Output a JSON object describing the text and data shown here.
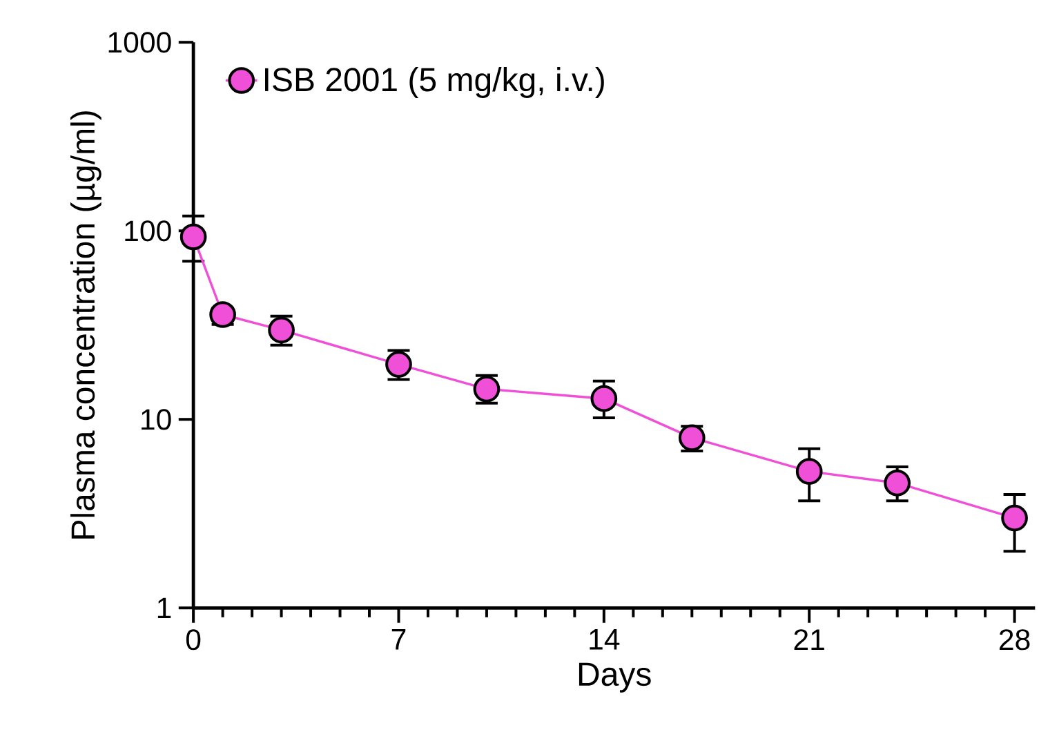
{
  "chart_data": {
    "type": "line",
    "xlabel": "Days",
    "ylabel": "Plasma concentration (µg/ml)",
    "x": [
      0,
      1,
      3,
      7,
      10,
      14,
      17,
      21,
      24,
      28
    ],
    "series": [
      {
        "name": "ISB 2001 (5 mg/kg, i.v.)",
        "color": "#f050d8",
        "values": [
          93,
          36,
          29.8,
          19.6,
          14.5,
          12.9,
          8.0,
          5.3,
          4.6,
          3.0
        ],
        "errors": [
          [
            69,
            120
          ],
          [
            31.9,
            39
          ],
          [
            24.8,
            35.3
          ],
          [
            16.3,
            23.2
          ],
          [
            12.2,
            17.1
          ],
          [
            10.2,
            16
          ],
          [
            6.8,
            9.2
          ],
          [
            3.7,
            7.0
          ],
          [
            3.7,
            5.6
          ],
          [
            2.0,
            4.0
          ]
        ]
      }
    ],
    "log": "y",
    "xlim": [
      0,
      28.7
    ],
    "xticks": [
      0,
      7,
      14,
      21,
      28
    ],
    "ylim": [
      1,
      1000
    ],
    "yticks": [
      1,
      10,
      100,
      1000
    ],
    "marker": "circle",
    "line_style": "solid",
    "legend": "top left",
    "grid": false
  }
}
